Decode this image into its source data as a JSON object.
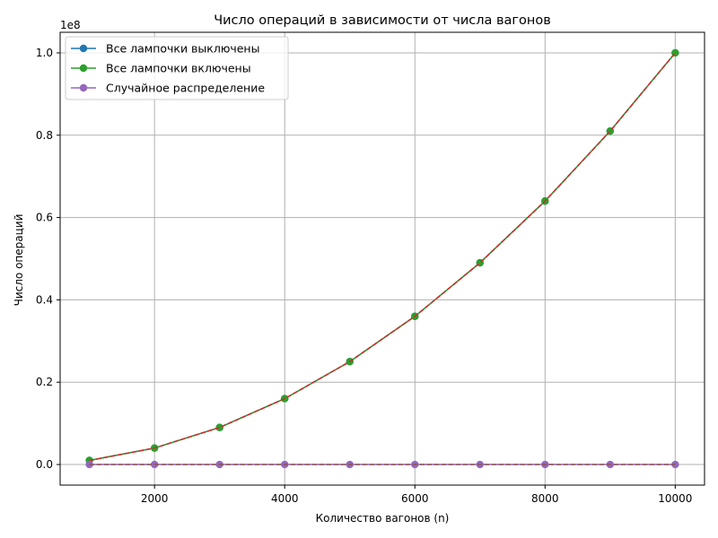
{
  "chart_data": {
    "type": "line",
    "title": "Число операций в зависимости от числа вагонов",
    "xlabel": "Количество вагонов (n)",
    "ylabel": "Число операций",
    "y_offset_label": "1e8",
    "x": [
      1000,
      2000,
      3000,
      4000,
      5000,
      6000,
      7000,
      8000,
      9000,
      10000
    ],
    "xlim": [
      550,
      10450
    ],
    "ylim": [
      -5000000,
      105000000
    ],
    "xticks": [
      2000,
      4000,
      6000,
      8000,
      10000
    ],
    "xtick_labels": [
      "2000",
      "4000",
      "6000",
      "8000",
      "10000"
    ],
    "yticks": [
      0,
      20000000,
      40000000,
      60000000,
      80000000,
      100000000
    ],
    "ytick_labels": [
      "0.0",
      "0.2",
      "0.4",
      "0.6",
      "0.8",
      "1.0"
    ],
    "grid": true,
    "legend_position": "top-left",
    "series": [
      {
        "name": "Все лампочки выключены",
        "color": "#1f77b4",
        "values": [
          1000000,
          4000000,
          9000000,
          16000000,
          25000000,
          36000000,
          49000000,
          64000000,
          81000000,
          100000000
        ]
      },
      {
        "name": "Все лампочки включены",
        "color": "#2ca02c",
        "values": [
          1000000,
          4000000,
          9000000,
          16000000,
          25000000,
          36000000,
          49000000,
          64000000,
          81000000,
          100000000
        ]
      },
      {
        "name": "",
        "color": "#d62728",
        "dashed": true,
        "values": [
          1000000,
          4000000,
          9000000,
          16000000,
          25000000,
          36000000,
          49000000,
          64000000,
          81000000,
          100000000
        ]
      },
      {
        "name": "Случайное распределение",
        "color": "#9467bd",
        "values": [
          0,
          0,
          0,
          0,
          0,
          0,
          0,
          0,
          0,
          0
        ]
      },
      {
        "name": "",
        "color": "#8c564b",
        "dashed": true,
        "values": [
          0,
          0,
          0,
          0,
          0,
          0,
          0,
          0,
          0,
          0
        ]
      }
    ]
  }
}
